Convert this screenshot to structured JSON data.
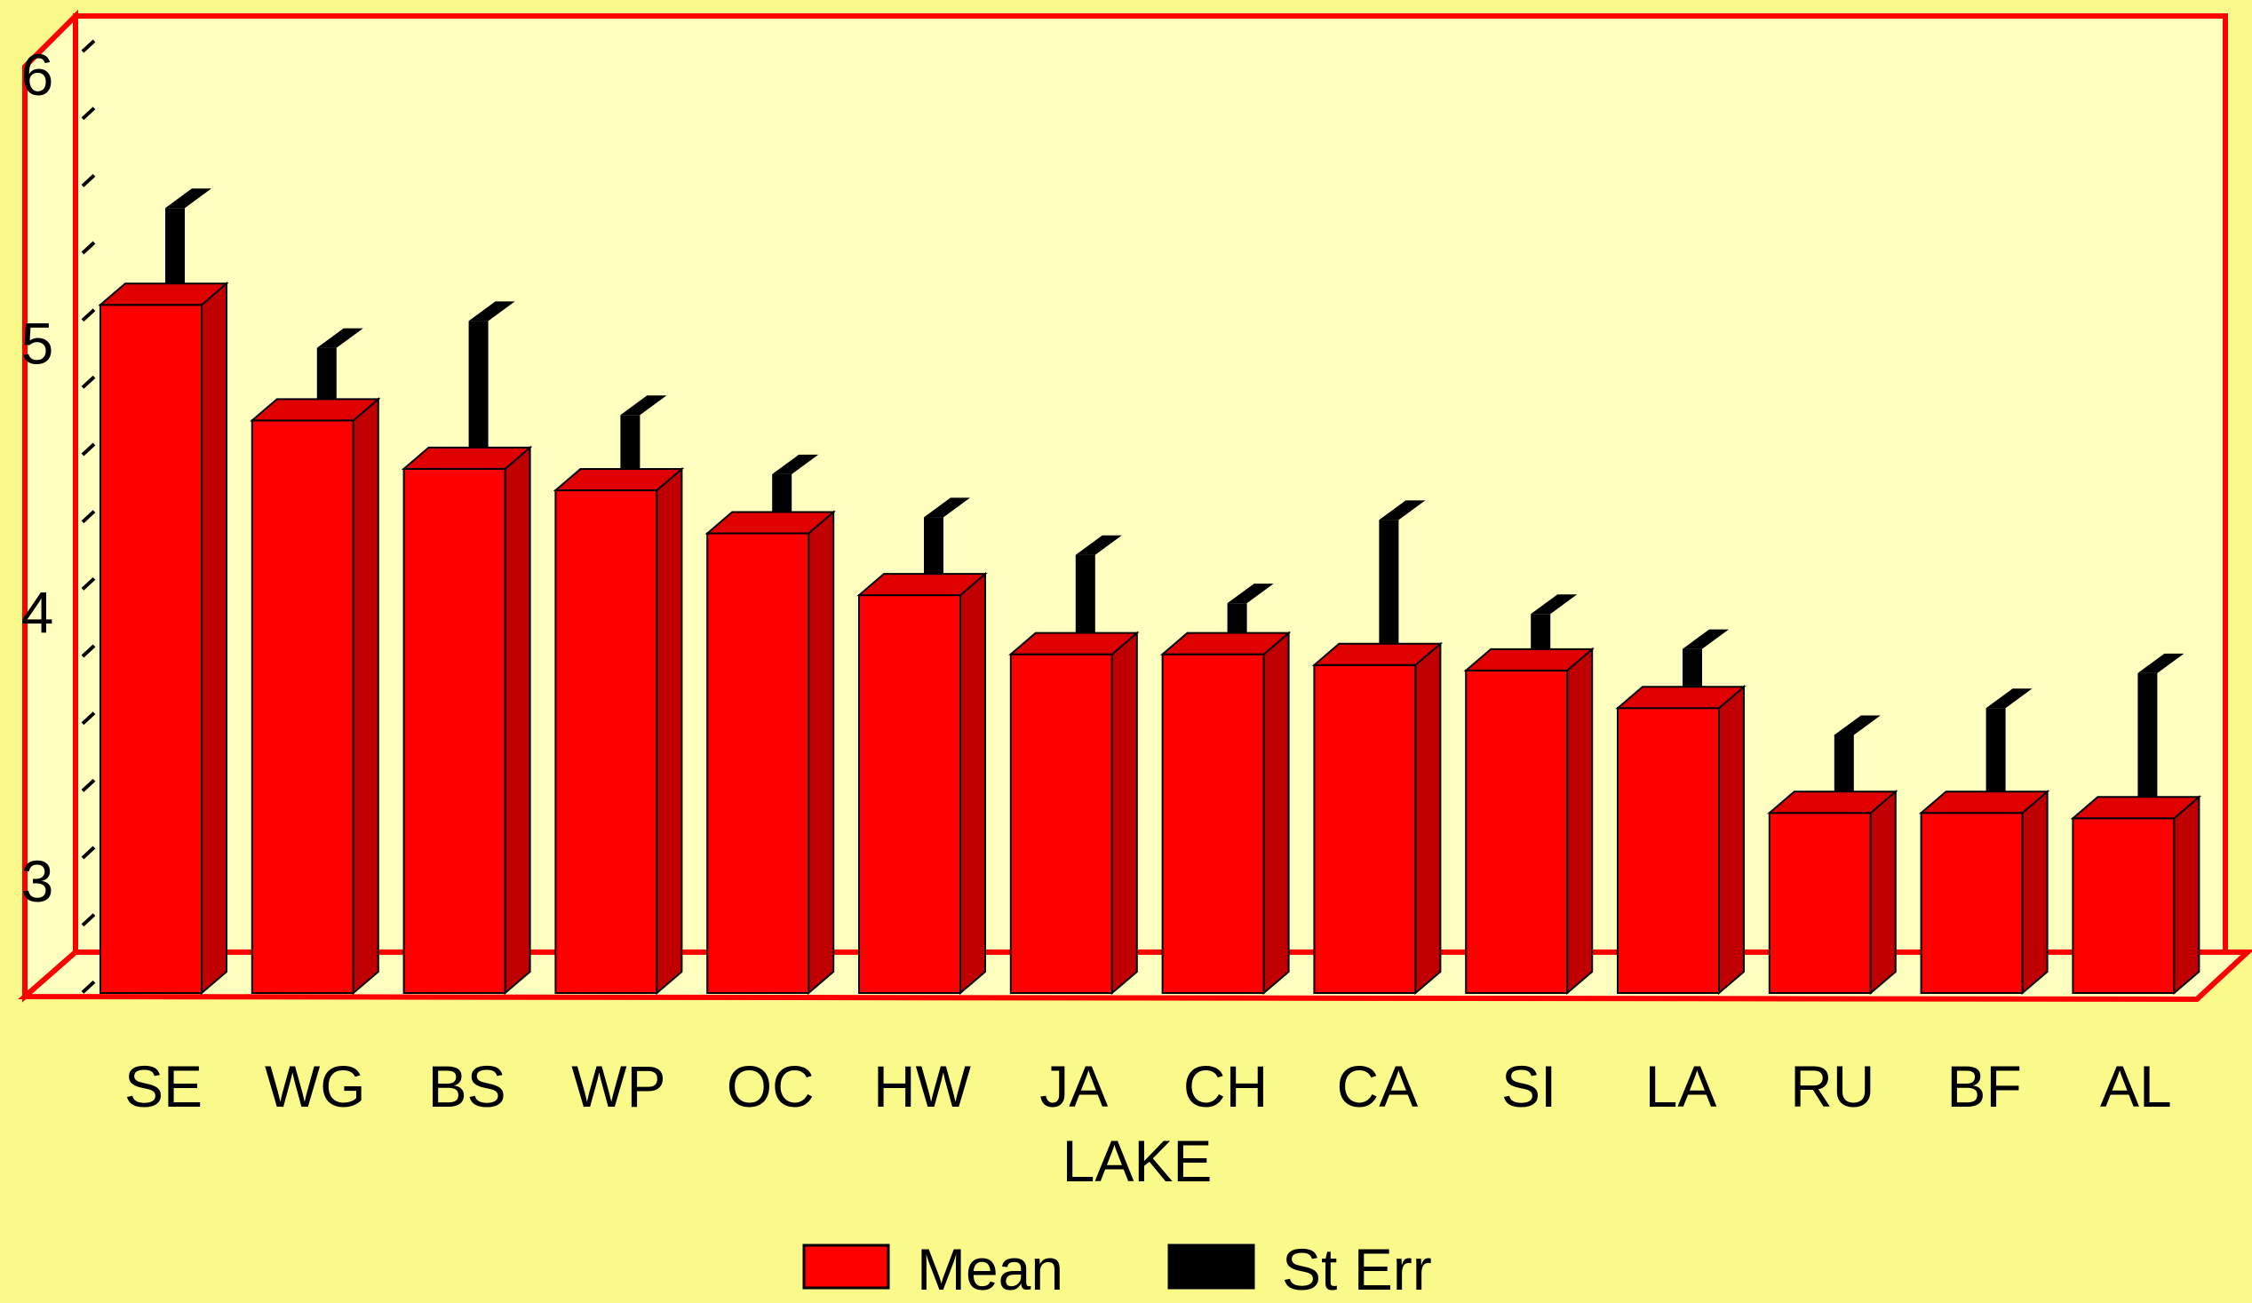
{
  "chart_data": {
    "type": "bar",
    "title": "",
    "xlabel": "LAKE",
    "ylabel": "",
    "ylim": [
      2.5,
      6
    ],
    "yticks": [
      3,
      4,
      5,
      6
    ],
    "grid": false,
    "legend_position": "bottom",
    "categories": [
      "SE",
      "WG",
      "BS",
      "WP",
      "OC",
      "HW",
      "JA",
      "CH",
      "CA",
      "SI",
      "LA",
      "RU",
      "BF",
      "AL"
    ],
    "series": [
      {
        "name": "Mean",
        "color": "#ff0000",
        "values": [
          5.17,
          4.74,
          4.56,
          4.48,
          4.32,
          4.09,
          3.87,
          3.87,
          3.83,
          3.81,
          3.67,
          3.28,
          3.28,
          3.26
        ]
      },
      {
        "name": "St Err",
        "color": "#000000",
        "values": [
          0.36,
          0.27,
          0.55,
          0.28,
          0.22,
          0.29,
          0.37,
          0.19,
          0.54,
          0.21,
          0.22,
          0.29,
          0.39,
          0.54
        ]
      }
    ]
  }
}
